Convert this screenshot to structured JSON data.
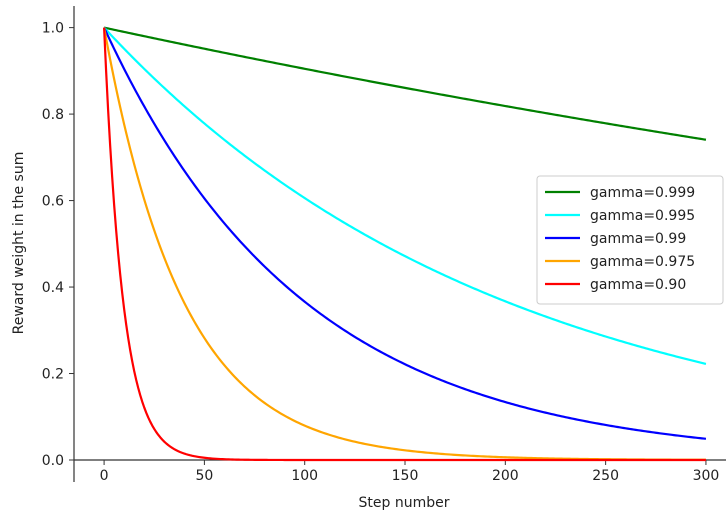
{
  "chart_data": {
    "type": "line",
    "title": "",
    "xlabel": "Step number",
    "ylabel": "Reward weight in the sum",
    "xlim": [
      -15,
      310
    ],
    "ylim": [
      0,
      1.05
    ],
    "x_ticks": [
      0,
      50,
      100,
      150,
      200,
      250,
      300
    ],
    "y_ticks": [
      0.0,
      0.2,
      0.4,
      0.6,
      0.8,
      1.0
    ],
    "x_tick_labels": [
      "0",
      "50",
      "100",
      "150",
      "200",
      "250",
      "300"
    ],
    "y_tick_labels": [
      "0.0",
      "0.2",
      "0.4",
      "0.6",
      "0.8",
      "1.0"
    ],
    "x_range": [
      0,
      300
    ],
    "grid": false,
    "legend_position": "center-right",
    "series": [
      {
        "name": "gamma=0.999",
        "gamma": 0.999,
        "color": "#008000"
      },
      {
        "name": "gamma=0.995",
        "gamma": 0.995,
        "color": "#00ffff"
      },
      {
        "name": "gamma=0.99",
        "gamma": 0.99,
        "color": "#0000ff"
      },
      {
        "name": "gamma=0.975",
        "gamma": 0.975,
        "color": "#ffa500"
      },
      {
        "name": "gamma=0.90",
        "gamma": 0.9,
        "color": "#ff0000"
      }
    ]
  }
}
